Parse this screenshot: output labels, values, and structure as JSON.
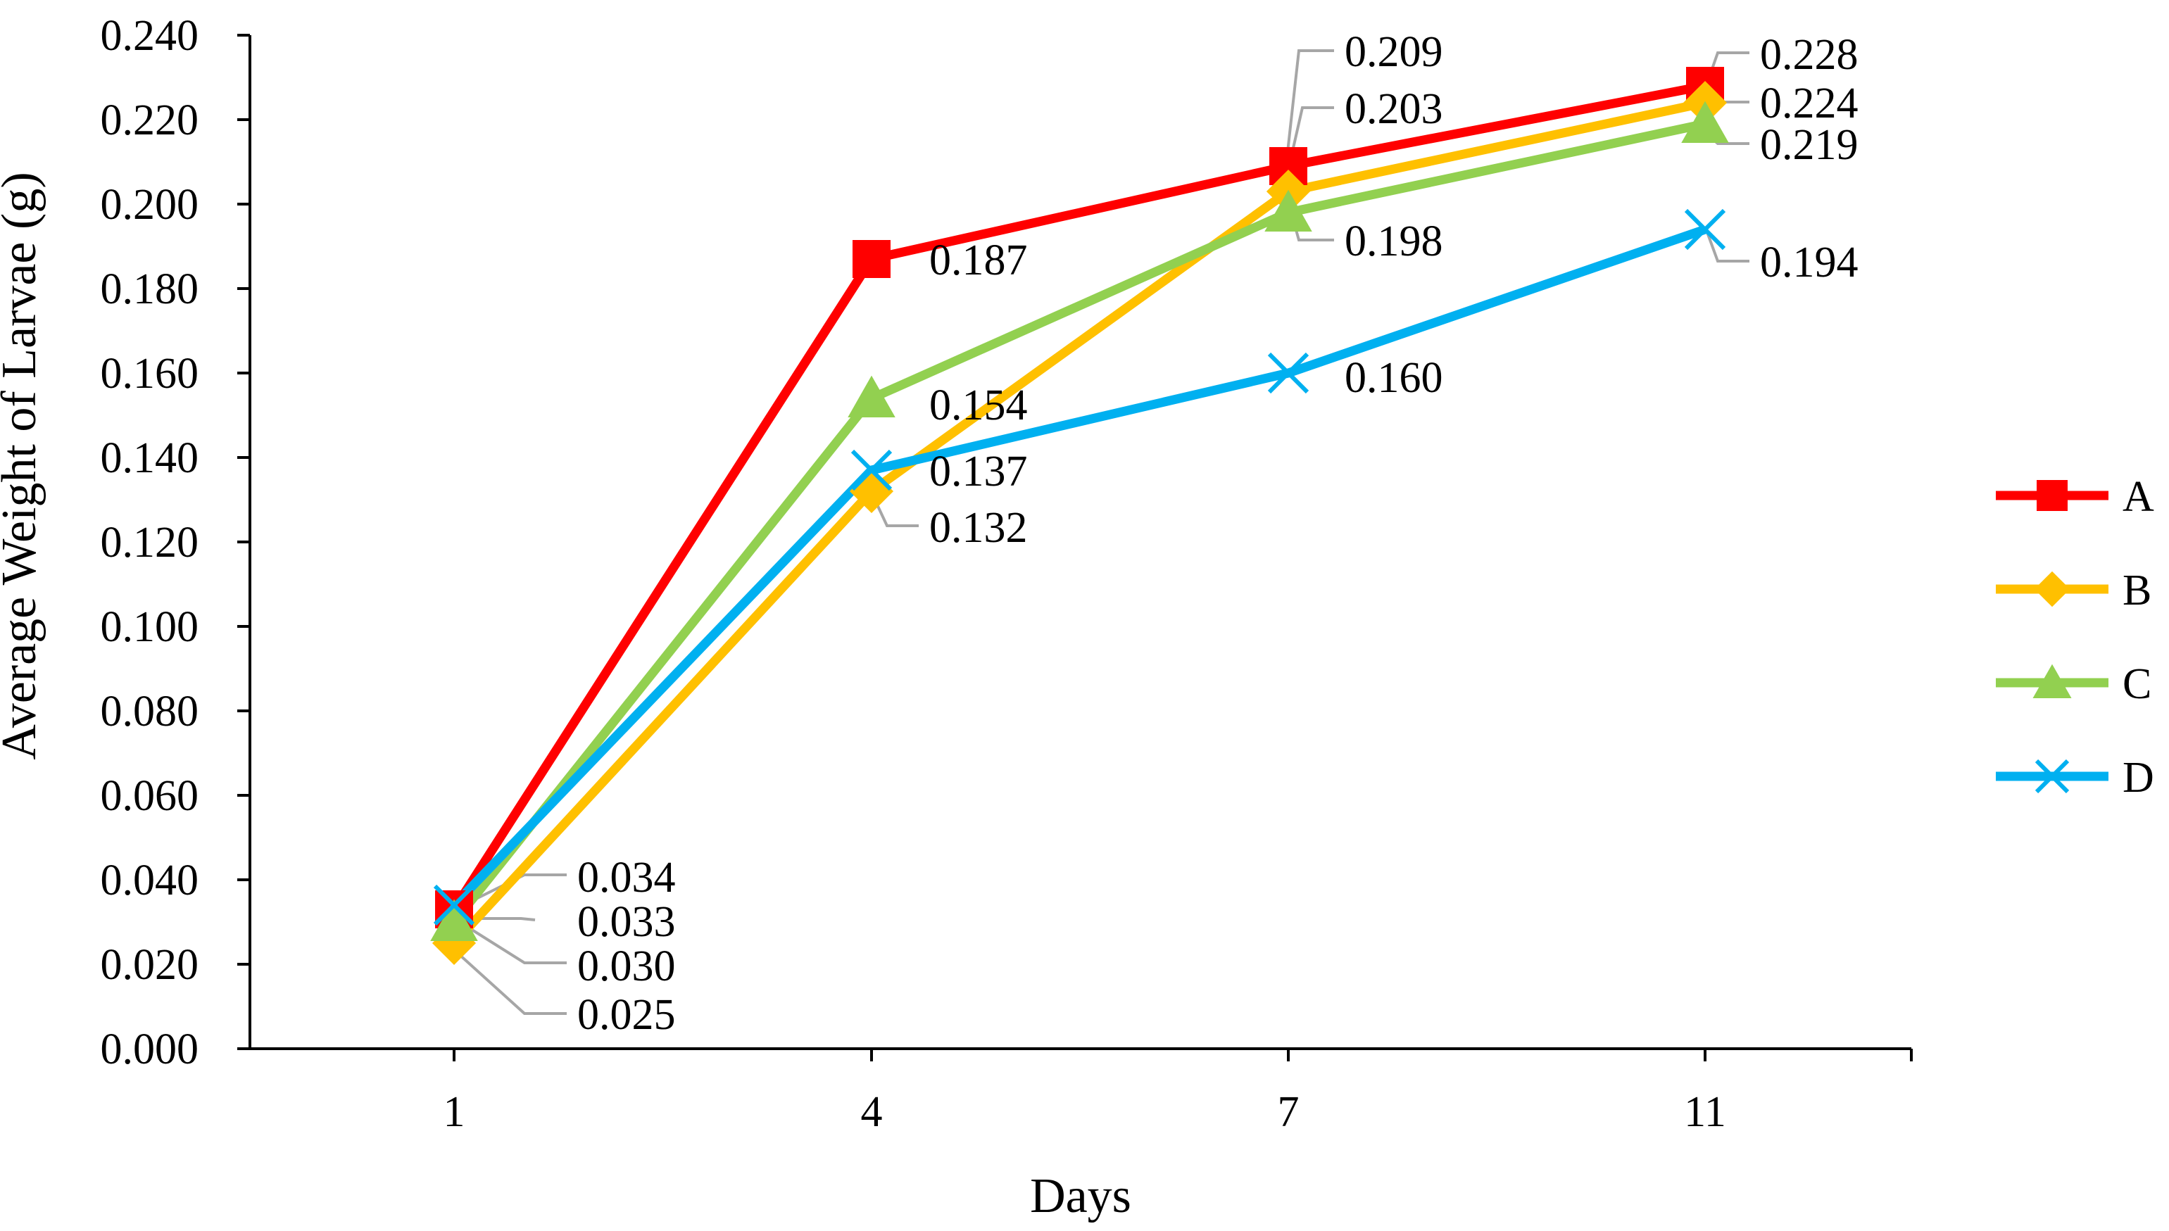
{
  "chart_data": {
    "type": "line",
    "title": "",
    "xlabel": "Days",
    "ylabel": "Average Weight of Larvae (g)",
    "categories": [
      "1",
      "4",
      "7",
      "11"
    ],
    "ylim": [
      0,
      0.24
    ],
    "yticks": [
      "0.000",
      "0.020",
      "0.040",
      "0.060",
      "0.080",
      "0.100",
      "0.120",
      "0.140",
      "0.160",
      "0.180",
      "0.200",
      "0.220",
      "0.240"
    ],
    "grid": false,
    "legend_position": "right",
    "series": [
      {
        "name": "A",
        "color": "#FF0000",
        "marker": "square",
        "values": [
          0.033,
          0.187,
          0.209,
          0.228
        ],
        "labels": [
          "0.033",
          "0.187",
          "0.209",
          "0.228"
        ]
      },
      {
        "name": "B",
        "color": "#FFC000",
        "marker": "diamond",
        "values": [
          0.025,
          0.132,
          0.203,
          0.224
        ],
        "labels": [
          "0.025",
          "0.132",
          "0.203",
          "0.224"
        ]
      },
      {
        "name": "C",
        "color": "#92D050",
        "marker": "triangle",
        "values": [
          0.03,
          0.154,
          0.198,
          0.219
        ],
        "labels": [
          "0.030",
          "0.154",
          "0.198",
          "0.219"
        ]
      },
      {
        "name": "D",
        "color": "#00B0F0",
        "marker": "x",
        "values": [
          0.034,
          0.137,
          0.16,
          0.194
        ],
        "labels": [
          "0.034",
          "0.137",
          "0.160",
          "0.194"
        ]
      }
    ]
  }
}
